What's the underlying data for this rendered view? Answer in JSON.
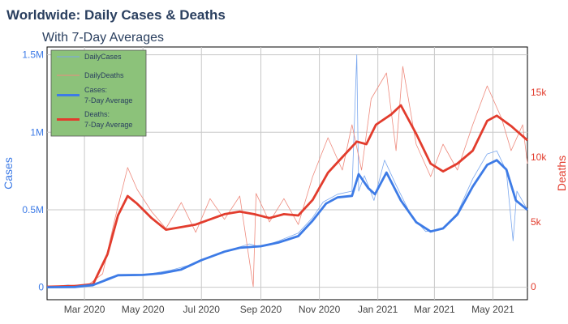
{
  "colors": {
    "cases_raw": "#7aa7ee",
    "cases_avg": "#3d7be6",
    "deaths_raw": "#ee8a7d",
    "deaths_avg": "#e23c2d",
    "left_axis": "#3d7be6",
    "right_axis": "#e23c2d",
    "grid": "#c8c8c8",
    "legend_bg": "#8cc27a",
    "title": "#2a3f5f"
  },
  "chart_data": {
    "type": "line",
    "title": "Worldwide: Daily Cases & Deaths",
    "subtitle": "With 7-Day Averages",
    "xlabel": "",
    "ylabel_left": "Cases",
    "ylabel_right": "Deaths",
    "x_range": [
      "2020-01-22",
      "2021-06-06"
    ],
    "ylim_left": [
      -80000,
      1550000
    ],
    "ylim_right": [
      -1000,
      18500
    ],
    "x_ticks": [
      {
        "date": "2020-03-01",
        "label": "Mar 2020"
      },
      {
        "date": "2020-05-01",
        "label": "May 2020"
      },
      {
        "date": "2020-07-01",
        "label": "Jul 2020"
      },
      {
        "date": "2020-09-01",
        "label": "Sep 2020"
      },
      {
        "date": "2020-11-01",
        "label": "Nov 2020"
      },
      {
        "date": "2021-01-01",
        "label": "Jan 2021"
      },
      {
        "date": "2021-03-01",
        "label": "Mar 2021"
      },
      {
        "date": "2021-05-01",
        "label": "May 2021"
      }
    ],
    "y_left_ticks": [
      {
        "value": 0,
        "label": "0"
      },
      {
        "value": 500000,
        "label": "0.5M"
      },
      {
        "value": 1000000,
        "label": "1M"
      },
      {
        "value": 1500000,
        "label": "1.5M"
      }
    ],
    "y_right_ticks": [
      {
        "value": 0,
        "label": "0"
      },
      {
        "value": 5000,
        "label": "5k"
      },
      {
        "value": 10000,
        "label": "10k"
      },
      {
        "value": 15000,
        "label": "15k"
      }
    ],
    "grid": true,
    "legend_position": "top-left",
    "series": [
      {
        "name": "DailyCases",
        "axis": "left",
        "style": "thin",
        "points": [
          [
            "2020-01-22",
            500
          ],
          [
            "2020-02-13",
            15000
          ],
          [
            "2020-02-25",
            3000
          ],
          [
            "2020-03-10",
            8000
          ],
          [
            "2020-03-25",
            60000
          ],
          [
            "2020-04-05",
            80000
          ],
          [
            "2020-04-20",
            78000
          ],
          [
            "2020-05-10",
            88000
          ],
          [
            "2020-05-30",
            110000
          ],
          [
            "2020-06-20",
            145000
          ],
          [
            "2020-07-15",
            210000
          ],
          [
            "2020-08-05",
            250000
          ],
          [
            "2020-08-20",
            280000
          ],
          [
            "2020-09-01",
            260000
          ],
          [
            "2020-09-20",
            300000
          ],
          [
            "2020-10-10",
            350000
          ],
          [
            "2020-10-25",
            450000
          ],
          [
            "2020-11-05",
            550000
          ],
          [
            "2020-11-20",
            600000
          ],
          [
            "2020-12-05",
            620000
          ],
          [
            "2020-12-10",
            1500000
          ],
          [
            "2020-12-12",
            620000
          ],
          [
            "2020-12-18",
            720000
          ],
          [
            "2020-12-28",
            560000
          ],
          [
            "2021-01-08",
            820000
          ],
          [
            "2021-01-20",
            660000
          ],
          [
            "2021-02-05",
            460000
          ],
          [
            "2021-02-20",
            360000
          ],
          [
            "2021-03-10",
            380000
          ],
          [
            "2021-03-25",
            480000
          ],
          [
            "2021-04-10",
            700000
          ],
          [
            "2021-04-25",
            860000
          ],
          [
            "2021-05-05",
            880000
          ],
          [
            "2021-05-15",
            750000
          ],
          [
            "2021-05-22",
            300000
          ],
          [
            "2021-05-26",
            620000
          ],
          [
            "2021-06-06",
            500000
          ]
        ]
      },
      {
        "name": "DailyDeaths",
        "axis": "right",
        "style": "thin",
        "points": [
          [
            "2020-01-22",
            20
          ],
          [
            "2020-02-15",
            120
          ],
          [
            "2020-03-05",
            150
          ],
          [
            "2020-03-20",
            1000
          ],
          [
            "2020-04-01",
            5000
          ],
          [
            "2020-04-15",
            9200
          ],
          [
            "2020-04-25",
            7500
          ],
          [
            "2020-05-10",
            5800
          ],
          [
            "2020-05-25",
            4500
          ],
          [
            "2020-06-10",
            6500
          ],
          [
            "2020-06-25",
            4200
          ],
          [
            "2020-07-10",
            6800
          ],
          [
            "2020-07-25",
            5200
          ],
          [
            "2020-08-10",
            7000
          ],
          [
            "2020-08-24",
            10
          ],
          [
            "2020-08-27",
            7200
          ],
          [
            "2020-09-10",
            5000
          ],
          [
            "2020-09-25",
            6800
          ],
          [
            "2020-10-10",
            4800
          ],
          [
            "2020-10-25",
            8500
          ],
          [
            "2020-11-10",
            11500
          ],
          [
            "2020-11-25",
            9000
          ],
          [
            "2020-12-05",
            12500
          ],
          [
            "2020-12-15",
            9000
          ],
          [
            "2020-12-25",
            14500
          ],
          [
            "2021-01-10",
            16500
          ],
          [
            "2021-01-20",
            10500
          ],
          [
            "2021-01-27",
            17000
          ],
          [
            "2021-02-10",
            11000
          ],
          [
            "2021-02-25",
            8500
          ],
          [
            "2021-03-10",
            11000
          ],
          [
            "2021-03-25",
            9000
          ],
          [
            "2021-04-10",
            12500
          ],
          [
            "2021-04-25",
            15500
          ],
          [
            "2021-05-10",
            13000
          ],
          [
            "2021-05-20",
            10500
          ],
          [
            "2021-06-01",
            12500
          ],
          [
            "2021-06-06",
            9500
          ]
        ]
      },
      {
        "name": "Cases:\n7-Day Average",
        "axis": "left",
        "style": "thick",
        "points": [
          [
            "2020-01-22",
            500
          ],
          [
            "2020-02-20",
            2000
          ],
          [
            "2020-03-10",
            15000
          ],
          [
            "2020-03-25",
            50000
          ],
          [
            "2020-04-05",
            78000
          ],
          [
            "2020-05-01",
            80000
          ],
          [
            "2020-05-20",
            90000
          ],
          [
            "2020-06-10",
            115000
          ],
          [
            "2020-07-01",
            175000
          ],
          [
            "2020-07-25",
            230000
          ],
          [
            "2020-08-10",
            255000
          ],
          [
            "2020-09-01",
            265000
          ],
          [
            "2020-09-20",
            290000
          ],
          [
            "2020-10-10",
            330000
          ],
          [
            "2020-10-25",
            430000
          ],
          [
            "2020-11-08",
            540000
          ],
          [
            "2020-11-20",
            580000
          ],
          [
            "2020-12-05",
            590000
          ],
          [
            "2020-12-12",
            730000
          ],
          [
            "2020-12-22",
            640000
          ],
          [
            "2020-12-29",
            600000
          ],
          [
            "2021-01-10",
            740000
          ],
          [
            "2021-01-25",
            560000
          ],
          [
            "2021-02-10",
            420000
          ],
          [
            "2021-02-25",
            360000
          ],
          [
            "2021-03-10",
            380000
          ],
          [
            "2021-03-25",
            470000
          ],
          [
            "2021-04-10",
            650000
          ],
          [
            "2021-04-25",
            790000
          ],
          [
            "2021-05-05",
            820000
          ],
          [
            "2021-05-15",
            760000
          ],
          [
            "2021-05-25",
            560000
          ],
          [
            "2021-06-06",
            500000
          ]
        ]
      },
      {
        "name": "Deaths:\n7-Day Average",
        "axis": "right",
        "style": "thick",
        "points": [
          [
            "2020-01-22",
            0
          ],
          [
            "2020-02-20",
            50
          ],
          [
            "2020-03-10",
            200
          ],
          [
            "2020-03-25",
            2500
          ],
          [
            "2020-04-05",
            5500
          ],
          [
            "2020-04-15",
            7000
          ],
          [
            "2020-04-25",
            6400
          ],
          [
            "2020-05-10",
            5300
          ],
          [
            "2020-05-25",
            4400
          ],
          [
            "2020-06-10",
            4600
          ],
          [
            "2020-06-25",
            4800
          ],
          [
            "2020-07-10",
            5200
          ],
          [
            "2020-07-25",
            5600
          ],
          [
            "2020-08-10",
            5800
          ],
          [
            "2020-08-25",
            5600
          ],
          [
            "2020-09-10",
            5300
          ],
          [
            "2020-09-25",
            5600
          ],
          [
            "2020-10-10",
            5500
          ],
          [
            "2020-10-25",
            6700
          ],
          [
            "2020-11-10",
            8800
          ],
          [
            "2020-11-25",
            10000
          ],
          [
            "2020-12-10",
            11200
          ],
          [
            "2020-12-20",
            11000
          ],
          [
            "2020-12-30",
            12500
          ],
          [
            "2021-01-15",
            13300
          ],
          [
            "2021-01-25",
            14000
          ],
          [
            "2021-02-10",
            11800
          ],
          [
            "2021-02-25",
            9500
          ],
          [
            "2021-03-10",
            8900
          ],
          [
            "2021-03-25",
            9500
          ],
          [
            "2021-04-10",
            10500
          ],
          [
            "2021-04-25",
            12800
          ],
          [
            "2021-05-05",
            13200
          ],
          [
            "2021-05-20",
            12400
          ],
          [
            "2021-06-06",
            11300
          ]
        ]
      }
    ]
  }
}
